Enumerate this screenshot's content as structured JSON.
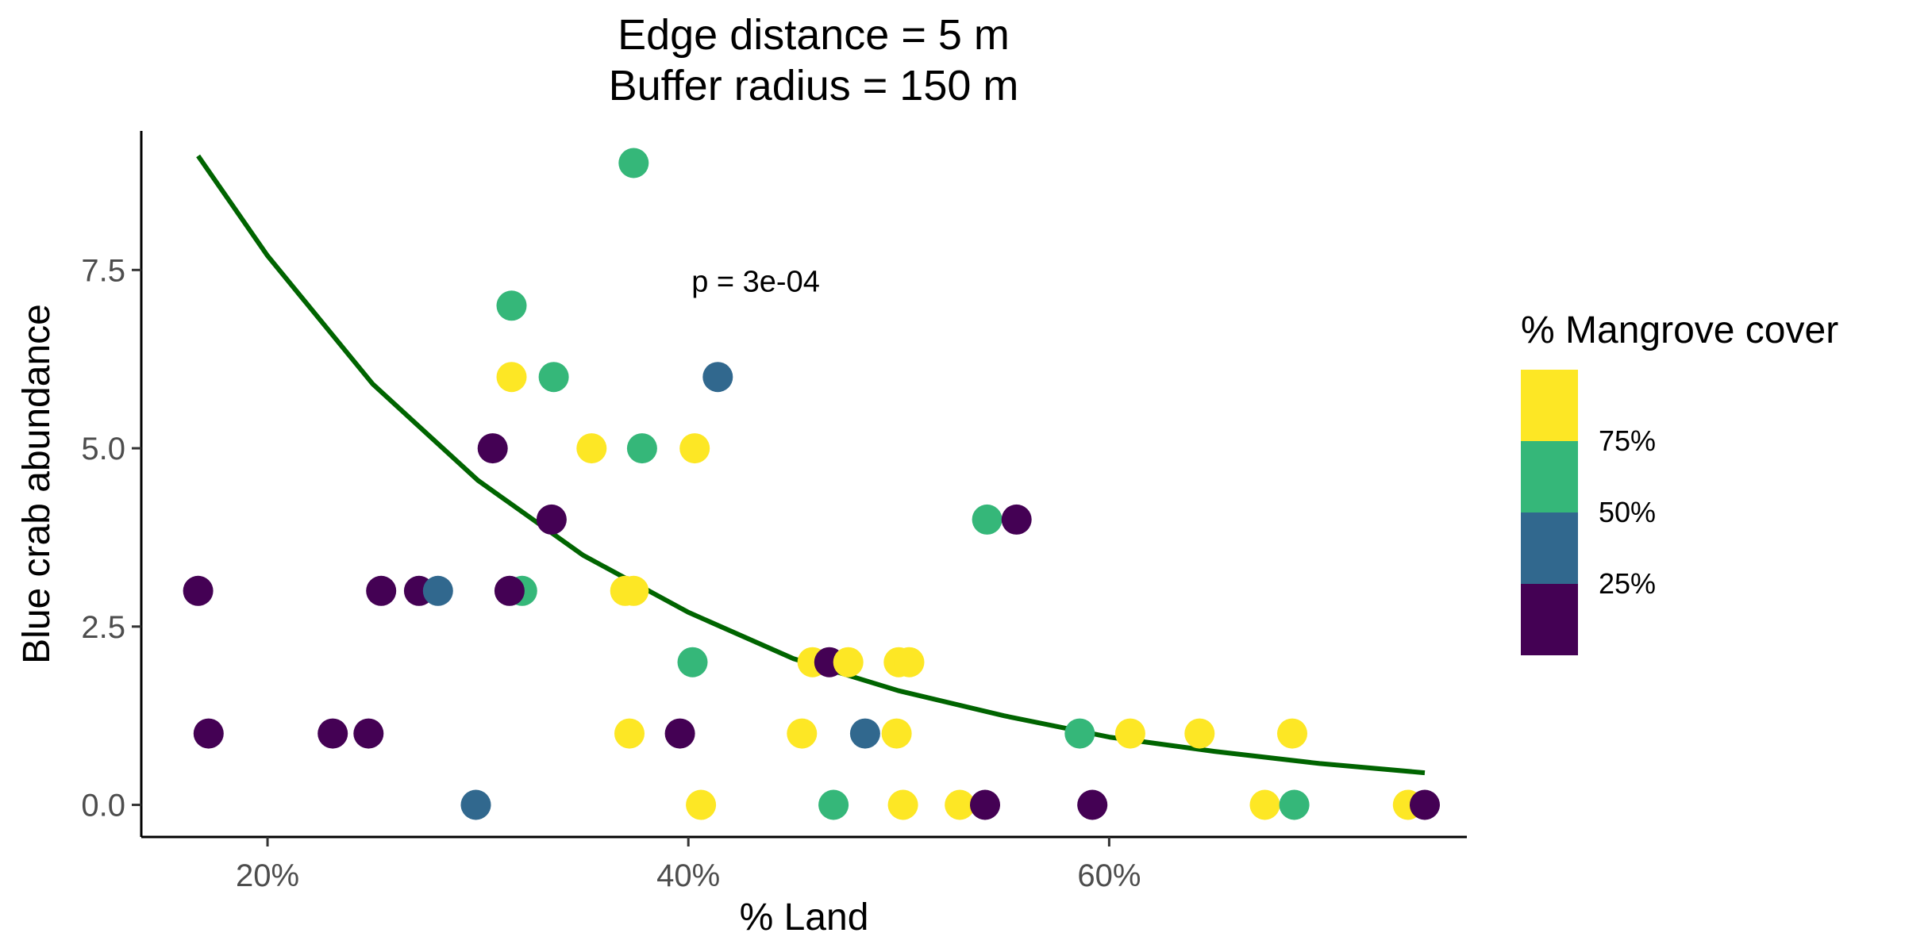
{
  "chart_data": {
    "type": "scatter",
    "title_lines": [
      "Edge distance = 5 m",
      "Buffer radius = 150 m"
    ],
    "xlabel": "% Land",
    "ylabel": "Blue crab abundance",
    "xlim": [
      14,
      77
    ],
    "ylim": [
      -0.45,
      9.45
    ],
    "x_ticks": [
      20,
      40,
      60
    ],
    "x_tick_labels": [
      "20%",
      "40%",
      "60%"
    ],
    "y_ticks": [
      0,
      2.5,
      5,
      7.5
    ],
    "y_tick_labels": [
      "0.0",
      "2.5",
      "5.0",
      "7.5"
    ],
    "grid": false,
    "annotation": {
      "text": "p = 3e-04",
      "x": 43.2,
      "y": 7.2
    },
    "legend": {
      "title": "% Mangrove cover",
      "placement": "right",
      "labels": [
        "75%",
        "50%",
        "25%"
      ],
      "colors": [
        "#440154",
        "#31688E",
        "#35B779",
        "#FDE725"
      ]
    },
    "points": [
      {
        "x": 16.7,
        "y": 3,
        "cover": "#440154"
      },
      {
        "x": 17.2,
        "y": 1,
        "cover": "#440154"
      },
      {
        "x": 23.1,
        "y": 1,
        "cover": "#440154"
      },
      {
        "x": 24.8,
        "y": 1,
        "cover": "#440154"
      },
      {
        "x": 25.4,
        "y": 3,
        "cover": "#440154"
      },
      {
        "x": 27.2,
        "y": 3,
        "cover": "#440154"
      },
      {
        "x": 28.1,
        "y": 3,
        "cover": "#31688E"
      },
      {
        "x": 29.9,
        "y": 0,
        "cover": "#31688E"
      },
      {
        "x": 30.7,
        "y": 5,
        "cover": "#440154"
      },
      {
        "x": 31.6,
        "y": 7,
        "cover": "#35B779"
      },
      {
        "x": 31.6,
        "y": 6,
        "cover": "#FDE725"
      },
      {
        "x": 32.1,
        "y": 3,
        "cover": "#35B779"
      },
      {
        "x": 31.5,
        "y": 3,
        "cover": "#440154"
      },
      {
        "x": 33.6,
        "y": 6,
        "cover": "#35B779"
      },
      {
        "x": 33.5,
        "y": 4,
        "cover": "#440154"
      },
      {
        "x": 35.4,
        "y": 5,
        "cover": "#FDE725"
      },
      {
        "x": 37.4,
        "y": 9,
        "cover": "#35B779"
      },
      {
        "x": 37.8,
        "y": 5,
        "cover": "#35B779"
      },
      {
        "x": 37.0,
        "y": 3,
        "cover": "#FDE725"
      },
      {
        "x": 37.4,
        "y": 3,
        "cover": "#FDE725"
      },
      {
        "x": 37.2,
        "y": 1,
        "cover": "#FDE725"
      },
      {
        "x": 39.6,
        "y": 1,
        "cover": "#440154"
      },
      {
        "x": 40.3,
        "y": 5,
        "cover": "#FDE725"
      },
      {
        "x": 40.2,
        "y": 2,
        "cover": "#35B779"
      },
      {
        "x": 40.6,
        "y": 0,
        "cover": "#FDE725"
      },
      {
        "x": 41.4,
        "y": 6,
        "cover": "#31688E"
      },
      {
        "x": 45.4,
        "y": 1,
        "cover": "#FDE725"
      },
      {
        "x": 45.9,
        "y": 2,
        "cover": "#FDE725"
      },
      {
        "x": 46.7,
        "y": 2,
        "cover": "#440154"
      },
      {
        "x": 47.6,
        "y": 2,
        "cover": "#FDE725"
      },
      {
        "x": 46.9,
        "y": 0,
        "cover": "#35B779"
      },
      {
        "x": 48.4,
        "y": 1,
        "cover": "#31688E"
      },
      {
        "x": 49.9,
        "y": 1,
        "cover": "#FDE725"
      },
      {
        "x": 50.0,
        "y": 2,
        "cover": "#FDE725"
      },
      {
        "x": 50.5,
        "y": 2,
        "cover": "#FDE725"
      },
      {
        "x": 50.2,
        "y": 0,
        "cover": "#FDE725"
      },
      {
        "x": 52.9,
        "y": 0,
        "cover": "#FDE725"
      },
      {
        "x": 54.1,
        "y": 0,
        "cover": "#440154"
      },
      {
        "x": 54.2,
        "y": 4,
        "cover": "#35B779"
      },
      {
        "x": 55.6,
        "y": 4,
        "cover": "#440154"
      },
      {
        "x": 58.6,
        "y": 1,
        "cover": "#35B779"
      },
      {
        "x": 59.2,
        "y": 0,
        "cover": "#440154"
      },
      {
        "x": 61.0,
        "y": 1,
        "cover": "#FDE725"
      },
      {
        "x": 64.3,
        "y": 1,
        "cover": "#FDE725"
      },
      {
        "x": 67.4,
        "y": 0,
        "cover": "#FDE725"
      },
      {
        "x": 68.7,
        "y": 1,
        "cover": "#FDE725"
      },
      {
        "x": 68.8,
        "y": 0,
        "cover": "#35B779"
      },
      {
        "x": 74.2,
        "y": 0,
        "cover": "#FDE725"
      },
      {
        "x": 75.0,
        "y": 0,
        "cover": "#440154"
      }
    ],
    "fit_curve": {
      "color": "#006400",
      "x": [
        16.7,
        20,
        25,
        30,
        35,
        40,
        45,
        50,
        55,
        60,
        65,
        70,
        75
      ],
      "y": [
        9.1,
        7.7,
        5.9,
        4.55,
        3.5,
        2.7,
        2.05,
        1.6,
        1.25,
        0.95,
        0.75,
        0.58,
        0.45
      ]
    }
  }
}
